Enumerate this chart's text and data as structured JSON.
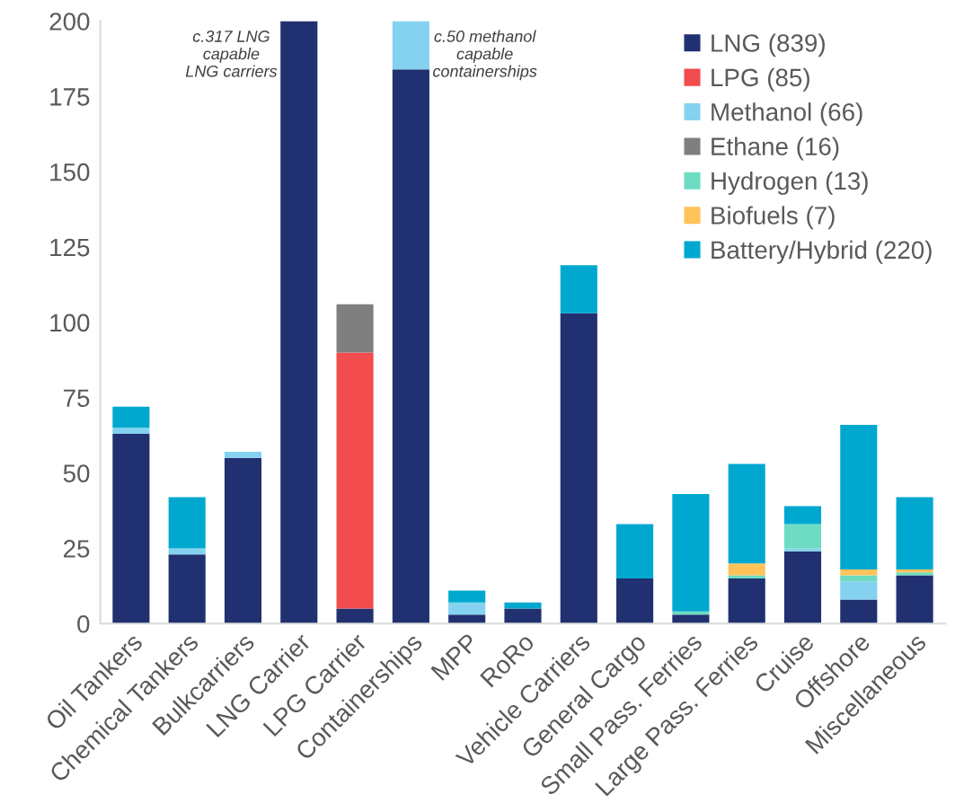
{
  "chart_data": {
    "type": "bar",
    "stacked": true,
    "categories": [
      "Oil Tankers",
      "Chemical Tankers",
      "Bulkcarriers",
      "LNG Carrier",
      "LPG Carrier",
      "Containerships",
      "MPP",
      "RoRo",
      "Vehicle Carriers",
      "General Cargo",
      "Small Pass. Ferries",
      "Large Pass. Ferries",
      "Cruise",
      "Offshore",
      "Miscellaneous"
    ],
    "series": [
      {
        "name": "LNG (839)",
        "color": "#203070",
        "values": [
          63,
          23,
          55,
          200,
          5,
          184,
          3,
          5,
          103,
          15,
          3,
          15,
          24,
          8,
          16
        ]
      },
      {
        "name": "LPG (85)",
        "color": "#f24c4e",
        "values": [
          0,
          0,
          0,
          0,
          85,
          0,
          0,
          0,
          0,
          0,
          0,
          0,
          0,
          0,
          0
        ]
      },
      {
        "name": "Methanol (66)",
        "color": "#84d2f0",
        "values": [
          2,
          2,
          2,
          0,
          0,
          16,
          4,
          0,
          0,
          0,
          0,
          0,
          1,
          6,
          0
        ]
      },
      {
        "name": "Ethane (16)",
        "color": "#7f7f7f",
        "values": [
          0,
          0,
          0,
          0,
          16,
          0,
          0,
          0,
          0,
          0,
          0,
          0,
          0,
          0,
          0
        ]
      },
      {
        "name": "Hydrogen (13)",
        "color": "#6ddcc2",
        "values": [
          0,
          0,
          0,
          0,
          0,
          0,
          0,
          0,
          0,
          0,
          1,
          1,
          8,
          2,
          1
        ]
      },
      {
        "name": "Biofuels (7)",
        "color": "#ffc35a",
        "values": [
          0,
          0,
          0,
          0,
          0,
          0,
          0,
          0,
          0,
          0,
          0,
          4,
          0,
          2,
          1
        ]
      },
      {
        "name": "Battery/Hybrid (220)",
        "color": "#00a8d0",
        "values": [
          7,
          17,
          0,
          0,
          0,
          0,
          4,
          2,
          16,
          18,
          39,
          33,
          6,
          48,
          24
        ]
      }
    ],
    "ylim": [
      0,
      200
    ],
    "yticks": [
      0,
      25,
      50,
      75,
      100,
      125,
      150,
      175,
      200
    ],
    "grid": false,
    "legend": "top right",
    "annotations": [
      "c.317 LNG\ncapable\nLNG carriers",
      "c.50 methanol\ncapable\ncontainerships"
    ]
  }
}
